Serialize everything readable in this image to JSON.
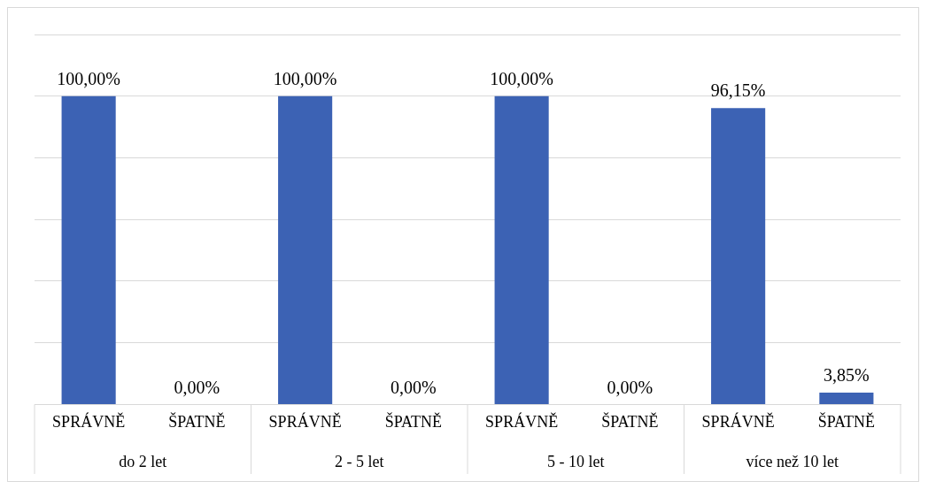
{
  "chart_data": {
    "type": "bar",
    "categories": [
      "SPRÁVNĚ",
      "ŠPATNĚ",
      "SPRÁVNĚ",
      "ŠPATNĚ",
      "SPRÁVNĚ",
      "ŠPATNĚ",
      "SPRÁVNĚ",
      "ŠPATNĚ"
    ],
    "values": [
      100,
      0,
      100,
      0,
      100,
      0,
      96.15,
      3.85
    ],
    "value_labels": [
      "100,00%",
      "0,00%",
      "100,00%",
      "0,00%",
      "100,00%",
      "0,00%",
      "96,15%",
      "3,85%"
    ],
    "color": "#3c62b4",
    "annotations": [
      "do 2 let",
      "2 - 5 let",
      "5 - 10 let",
      "více než 10 let"
    ],
    "ylim": [
      0,
      120
    ],
    "yticks": [
      {
        "value": 0,
        "label": null
      },
      {
        "value": 20,
        "label": null
      },
      {
        "value": 40,
        "label": null
      },
      {
        "value": 60,
        "label": null
      },
      {
        "value": 80,
        "label": null
      },
      {
        "value": 100,
        "label": null
      },
      {
        "value": 120,
        "label": null
      }
    ],
    "grid": "y",
    "tick_labels": "x"
  }
}
